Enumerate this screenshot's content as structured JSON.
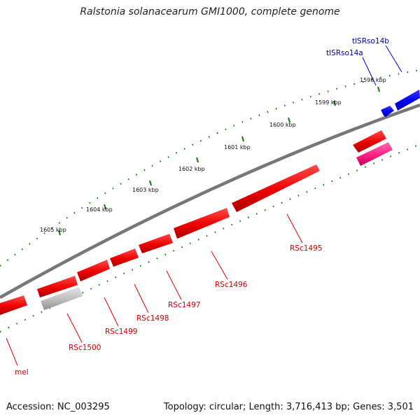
{
  "title": "Ralstonia solanacearum GMI1000, complete genome",
  "footer": {
    "accession": "Accession: NC_003295",
    "summary": "Topology: circular; Length: 3,716,413 bp; Genes: 3,501"
  },
  "colors": {
    "cds": "#ee0000",
    "cds_alt": "#ff2a8a",
    "trna": "#0000ee",
    "pseudo": "#bbbbbb",
    "backbone": "#777777",
    "ruler": "#0a7a0a"
  },
  "ticks": [
    "1598 kbp",
    "1599 kbp",
    "1600 kbp",
    "1601 kbp",
    "1602 kbp",
    "1603 kbp",
    "1604 kbp",
    "1605 kbp"
  ],
  "labels": {
    "tlSRso14b": "tlSRso14b",
    "tlSRso14a": "tlSRso14a",
    "RSc1495": "RSc1495",
    "RSc1496": "RSc1496",
    "RSc1497": "RSc1497",
    "RSc1498": "RSc1498",
    "RSc1499": "RSc1499",
    "RSc1500": "RSc1500",
    "mel": "mel"
  }
}
